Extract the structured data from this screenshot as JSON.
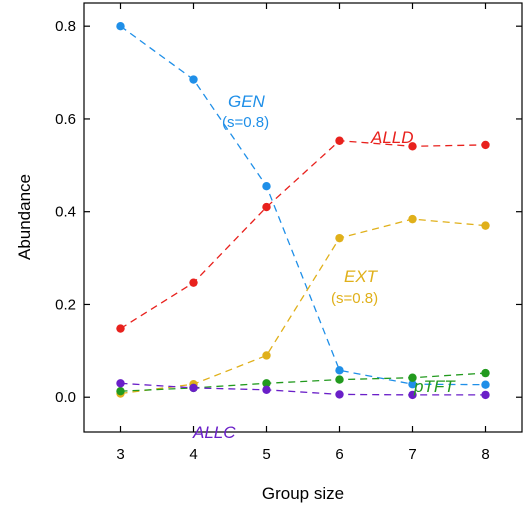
{
  "chart_data": {
    "type": "line",
    "xlabel": "Group size",
    "ylabel": "Abundance",
    "xlim": [
      2.5,
      8.5
    ],
    "ylim": [
      -0.075,
      0.85
    ],
    "x_ticks": [
      3,
      4,
      5,
      6,
      7,
      8
    ],
    "y_ticks": [
      0.0,
      0.2,
      0.4,
      0.6,
      0.8
    ],
    "y_tick_labels": [
      "0.0",
      "0.2",
      "0.4",
      "0.6",
      "0.8"
    ],
    "grid": false,
    "line_style": "dashed",
    "x": [
      3,
      4,
      5,
      6,
      7,
      8
    ],
    "series": [
      {
        "name": "GEN",
        "note": "(s=0.8)",
        "color": "#1f8fe8",
        "values": [
          0.8,
          0.685,
          0.455,
          0.058,
          0.028,
          0.027
        ]
      },
      {
        "name": "ALLD",
        "color": "#e8211d",
        "values": [
          0.148,
          0.247,
          0.41,
          0.553,
          0.541,
          0.544
        ]
      },
      {
        "name": "EXT",
        "note": "(s=0.8)",
        "color": "#e0b01a",
        "values": [
          0.008,
          0.028,
          0.09,
          0.343,
          0.384,
          0.37
        ]
      },
      {
        "name": "pTFT",
        "color": "#229a1e",
        "values": [
          0.013,
          0.02,
          0.03,
          0.038,
          0.042,
          0.052
        ]
      },
      {
        "name": "ALLC",
        "color": "#6a1fc8",
        "values": [
          0.03,
          0.02,
          0.016,
          0.006,
          0.005,
          0.005
        ]
      }
    ]
  }
}
